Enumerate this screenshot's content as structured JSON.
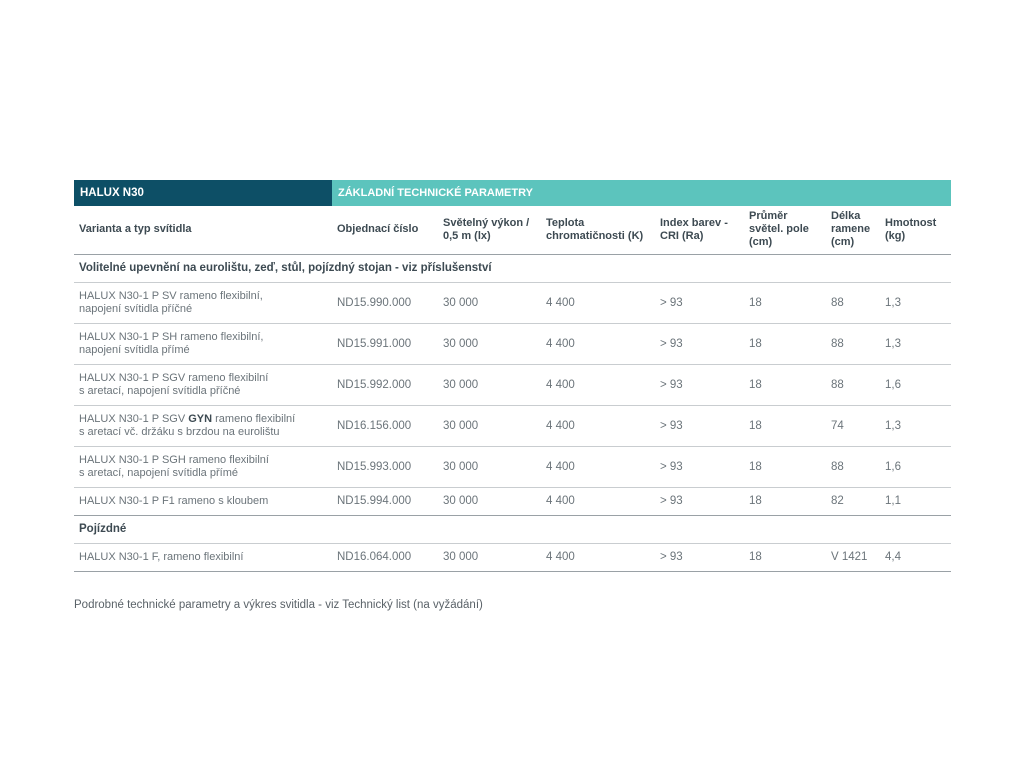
{
  "header": {
    "product": "HALUX N30",
    "section_title": "ZÁKLADNÍ TECHNICKÉ PARAMETRY"
  },
  "columns": [
    "Varianta a typ svítidla",
    "Objednací číslo",
    "Světelný výkon / 0,5 m (lx)",
    "Teplota chromatičnosti (K)",
    "Index barev - CRI (Ra)",
    "Průměr světel. pole (cm)",
    "Délka ramene (cm)",
    "Hmotnost (kg)"
  ],
  "group1": {
    "title": "Volitelné upevnění na eurolištu, zeď, stůl, pojízdný stojan - viz příslušenství",
    "rows": [
      {
        "name_line1": "HALUX N30-1 P SV rameno flexibilní,",
        "name_line2": "napojení svítidla příčné",
        "order": "ND15.990.000",
        "lux": "30 000",
        "temp": "4 400",
        "cri": "> 93",
        "diam": "18",
        "arm": "88",
        "weight": "1,3"
      },
      {
        "name_line1": "HALUX N30-1 P SH rameno flexibilní,",
        "name_line2": "napojení svítidla přímé",
        "order": "ND15.991.000",
        "lux": "30 000",
        "temp": "4 400",
        "cri": "> 93",
        "diam": "18",
        "arm": "88",
        "weight": "1,3"
      },
      {
        "name_line1": "HALUX N30-1 P SGV rameno flexibilní",
        "name_line2": "s aretací, napojení svítidla příčné",
        "order": "ND15.992.000",
        "lux": "30 000",
        "temp": "4 400",
        "cri": "> 93",
        "diam": "18",
        "arm": "88",
        "weight": "1,6"
      },
      {
        "name_pre": "HALUX N30-1 P SGV ",
        "name_bold": "GYN",
        "name_post": " rameno flexibilní",
        "name_line2": "s aretací vč. držáku s brzdou na eurolištu",
        "order": "ND16.156.000",
        "lux": "30 000",
        "temp": "4 400",
        "cri": "> 93",
        "diam": "18",
        "arm": "74",
        "weight": "1,3"
      },
      {
        "name_line1": "HALUX N30-1 P SGH rameno flexibilní",
        "name_line2": "s aretací, napojení svítidla přímé",
        "order": "ND15.993.000",
        "lux": "30 000",
        "temp": "4 400",
        "cri": "> 93",
        "diam": "18",
        "arm": "88",
        "weight": "1,6"
      },
      {
        "name_line1": "HALUX N30-1 P F1 rameno s kloubem",
        "order": "ND15.994.000",
        "lux": "30 000",
        "temp": "4 400",
        "cri": "> 93",
        "diam": "18",
        "arm": "82",
        "weight": "1,1"
      }
    ]
  },
  "group2": {
    "title": "Pojízdné",
    "rows": [
      {
        "name_line1": "HALUX N30-1 F, rameno flexibilní",
        "order": "ND16.064.000",
        "lux": "30 000",
        "temp": "4 400",
        "cri": "> 93",
        "diam": "18",
        "arm": "V 1421",
        "weight": "4,4"
      }
    ]
  },
  "footnote": "Podrobné technické parametry a výkres svitidla - viz Technický list (na vyžádání)",
  "colors": {
    "header_dark": "#0d4f66",
    "header_teal": "#5cc4bd"
  }
}
